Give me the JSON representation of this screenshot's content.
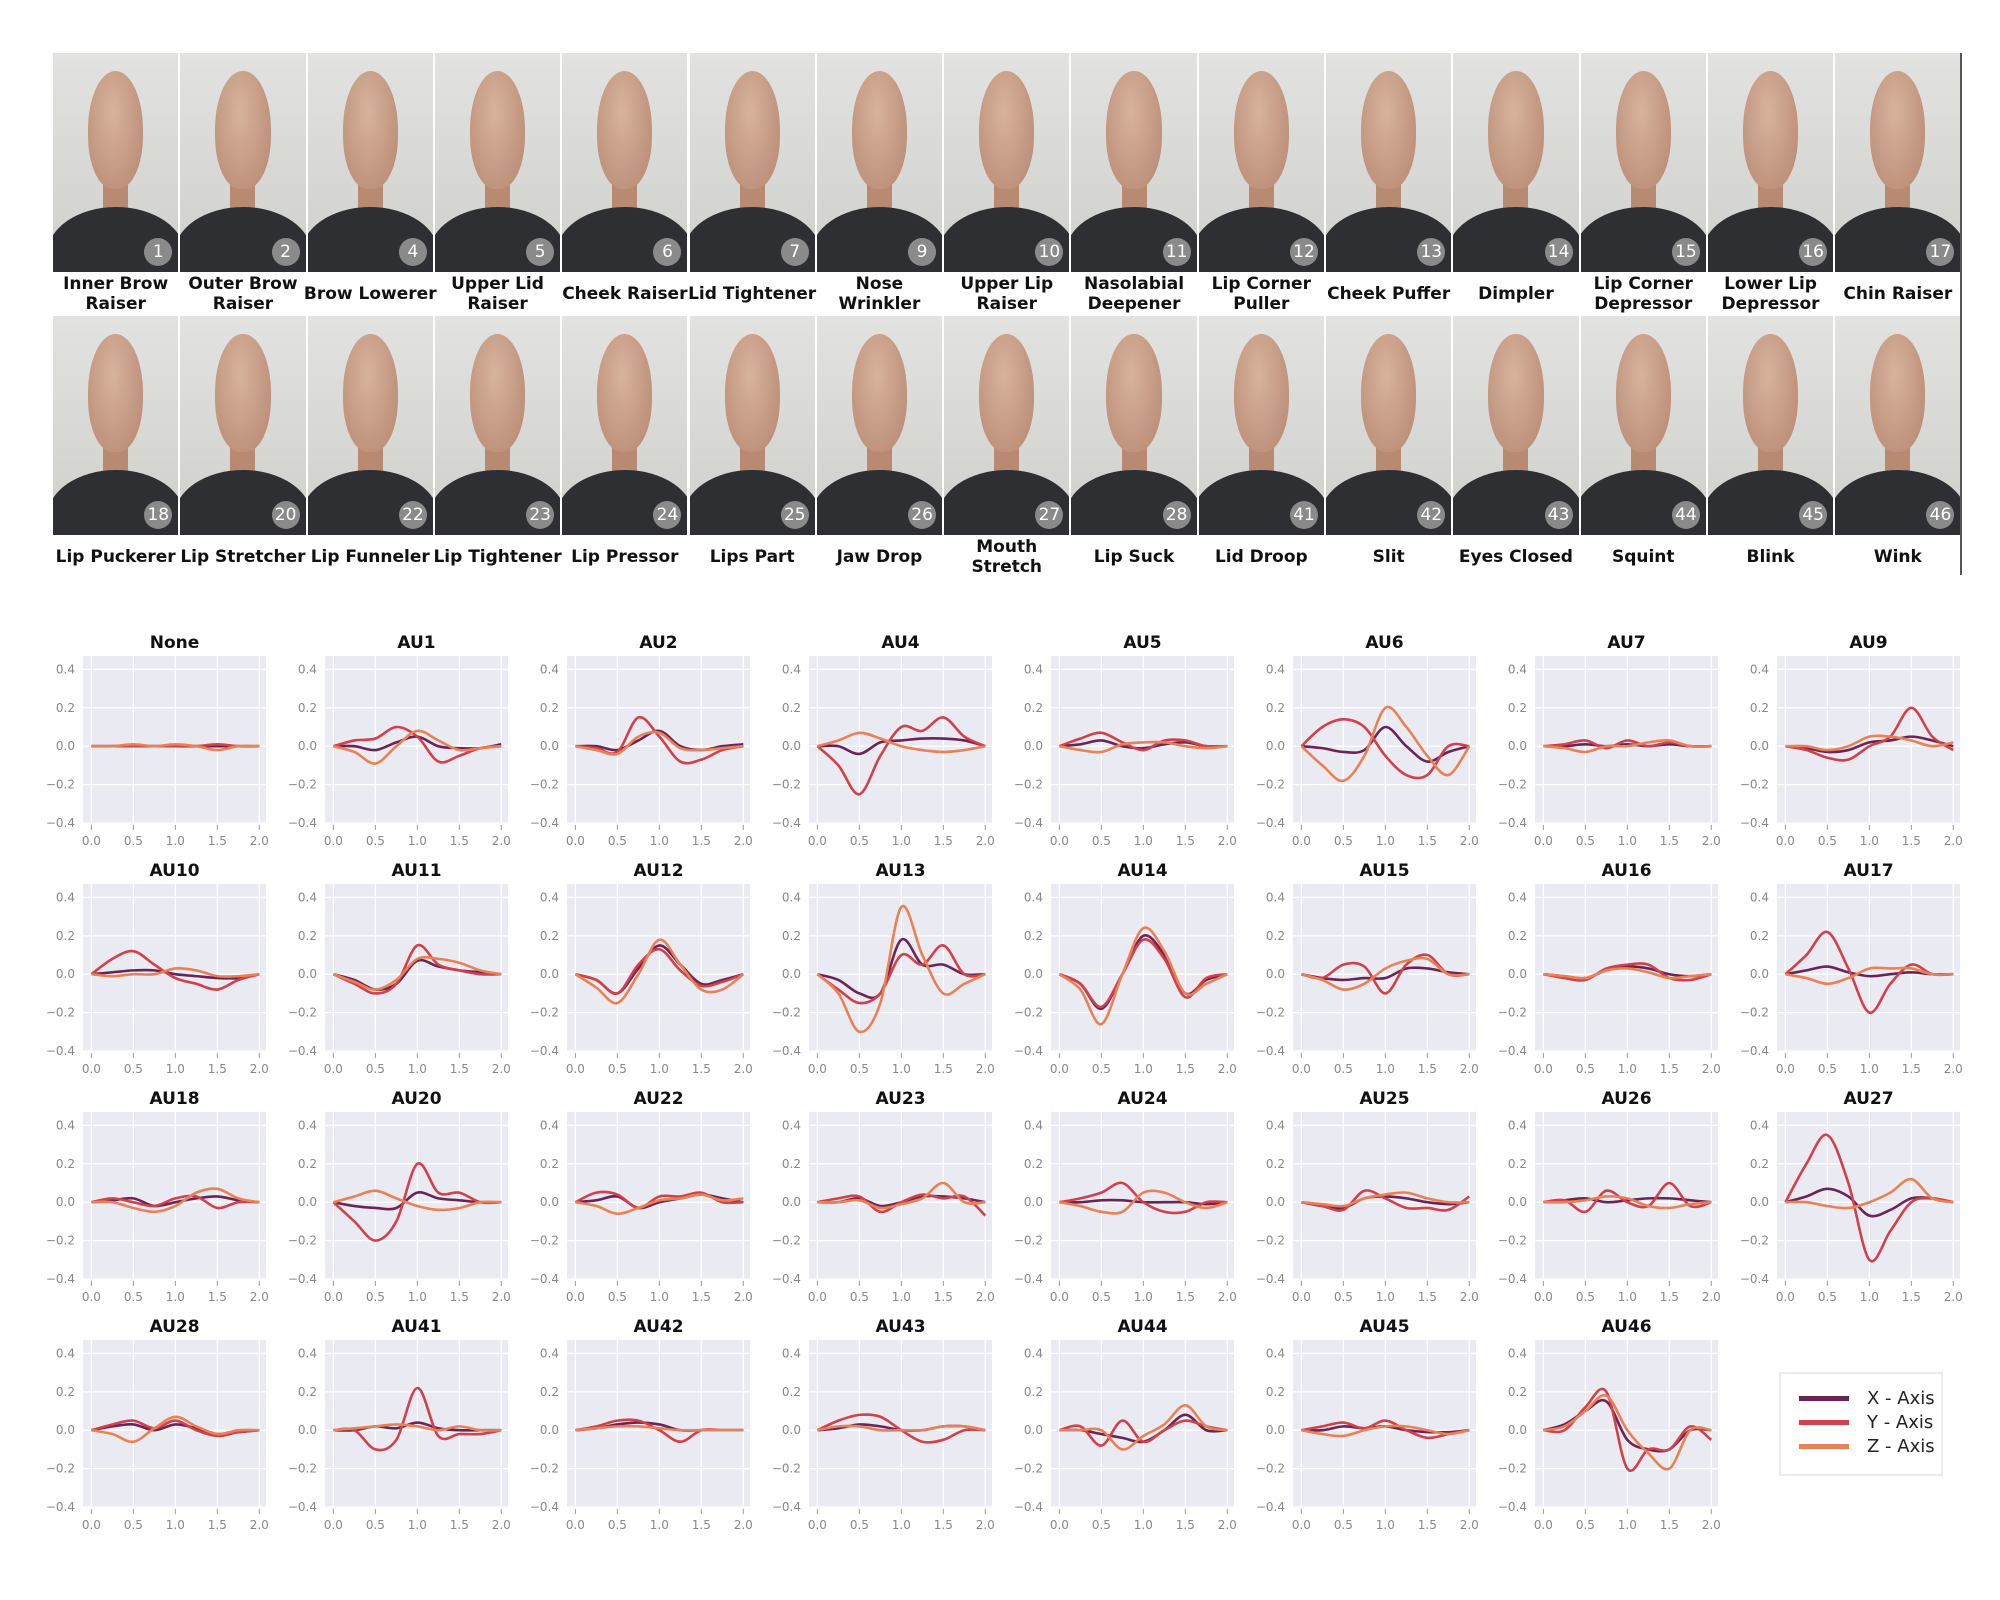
{
  "photos": [
    {
      "label": "Inner Brow Raiser",
      "au": "1"
    },
    {
      "label": "Outer Brow Raiser",
      "au": "2"
    },
    {
      "label": "Brow Lowerer",
      "au": "4"
    },
    {
      "label": "Upper Lid Raiser",
      "au": "5"
    },
    {
      "label": "Cheek Raiser",
      "au": "6"
    },
    {
      "label": "Lid Tightener",
      "au": "7"
    },
    {
      "label": "Nose Wrinkler",
      "au": "9"
    },
    {
      "label": "Upper Lip Raiser",
      "au": "10"
    },
    {
      "label": "Nasolabial Deepener",
      "au": "11"
    },
    {
      "label": "Lip Corner Puller",
      "au": "12"
    },
    {
      "label": "Cheek Puffer",
      "au": "13"
    },
    {
      "label": "Dimpler",
      "au": "14"
    },
    {
      "label": "Lip Corner Depressor",
      "au": "15"
    },
    {
      "label": "Lower Lip Depressor",
      "au": "16"
    },
    {
      "label": "Chin Raiser",
      "au": "17"
    },
    {
      "label": "Lip Puckerer",
      "au": "18"
    },
    {
      "label": "Lip Stretcher",
      "au": "20"
    },
    {
      "label": "Lip Funneler",
      "au": "22"
    },
    {
      "label": "Lip Tightener",
      "au": "23"
    },
    {
      "label": "Lip Pressor",
      "au": "24"
    },
    {
      "label": "Lips Part",
      "au": "25"
    },
    {
      "label": "Jaw Drop",
      "au": "26"
    },
    {
      "label": "Mouth Stretch",
      "au": "27"
    },
    {
      "label": "Lip Suck",
      "au": "28"
    },
    {
      "label": "Lid Droop",
      "au": "41"
    },
    {
      "label": "Slit",
      "au": "42"
    },
    {
      "label": "Eyes Closed",
      "au": "43"
    },
    {
      "label": "Squint",
      "au": "44"
    },
    {
      "label": "Blink",
      "au": "45"
    },
    {
      "label": "Wink",
      "au": "46"
    }
  ],
  "legend": [
    {
      "name": "X - Axis",
      "color": "#6b2456"
    },
    {
      "name": "Y - Axis",
      "color": "#d2404a"
    },
    {
      "name": "Z - Axis",
      "color": "#ea8155"
    }
  ],
  "chart_data": {
    "type": "line",
    "layout": "small multiples, 8 per row",
    "grid": true,
    "legend_position": "bottom-right",
    "xlim": [
      -0.1,
      2.08
    ],
    "ylim": [
      -0.4,
      0.47
    ],
    "xticks": [
      "0.0",
      "0.5",
      "1.0",
      "1.5",
      "2.0"
    ],
    "yticks": [
      "0.4",
      "0.2",
      "0.0",
      "−0.2",
      "−0.4"
    ],
    "x": [
      0,
      0.25,
      0.5,
      0.75,
      1.0,
      1.25,
      1.5,
      1.75,
      2.0
    ],
    "series_names": [
      "X - Axis",
      "Y - Axis",
      "Z - Axis"
    ],
    "panels": [
      {
        "title": "None",
        "X": [
          0,
          0,
          0,
          0,
          0,
          0,
          0,
          0,
          0
        ],
        "Y": [
          0,
          0,
          0,
          0,
          0,
          0,
          0.01,
          0,
          0
        ],
        "Z": [
          0,
          0,
          0.01,
          0,
          0.01,
          0,
          -0.02,
          0,
          0
        ]
      },
      {
        "title": "AU1",
        "X": [
          0,
          0,
          -0.02,
          0.02,
          0.05,
          0,
          -0.01,
          -0.01,
          0.01
        ],
        "Y": [
          0,
          0.03,
          0.04,
          0.1,
          0.05,
          -0.08,
          -0.05,
          -0.01,
          0
        ],
        "Z": [
          0,
          -0.03,
          -0.09,
          0,
          0.08,
          0.03,
          -0.02,
          -0.01,
          0
        ]
      },
      {
        "title": "AU2",
        "X": [
          0,
          0,
          -0.02,
          0.03,
          0.08,
          0,
          -0.02,
          0,
          0.01
        ],
        "Y": [
          0,
          -0.01,
          -0.03,
          0.15,
          0.05,
          -0.08,
          -0.07,
          -0.02,
          0
        ],
        "Z": [
          0,
          -0.02,
          -0.04,
          0.05,
          0.07,
          -0.01,
          -0.02,
          -0.01,
          0
        ]
      },
      {
        "title": "AU4",
        "X": [
          0,
          0,
          -0.04,
          0.02,
          0.03,
          0.04,
          0.04,
          0.03,
          0
        ],
        "Y": [
          0,
          -0.1,
          -0.25,
          -0.05,
          0.1,
          0.08,
          0.15,
          0.05,
          0
        ],
        "Z": [
          0,
          0.03,
          0.07,
          0.04,
          0,
          -0.02,
          -0.03,
          -0.02,
          0
        ]
      },
      {
        "title": "AU5",
        "X": [
          0,
          0.01,
          0.03,
          0,
          -0.01,
          0.01,
          0.02,
          0,
          0
        ],
        "Y": [
          0,
          0.04,
          0.07,
          0.02,
          -0.02,
          0.03,
          0.03,
          0,
          0
        ],
        "Z": [
          0,
          -0.02,
          -0.03,
          0.01,
          0.02,
          0.02,
          0,
          -0.01,
          0
        ]
      },
      {
        "title": "AU6",
        "X": [
          0,
          -0.01,
          -0.03,
          -0.02,
          0.1,
          0,
          -0.08,
          -0.03,
          0
        ],
        "Y": [
          0,
          0.1,
          0.14,
          0.1,
          -0.05,
          -0.15,
          -0.15,
          0,
          0
        ],
        "Z": [
          0,
          -0.1,
          -0.18,
          -0.05,
          0.2,
          0.1,
          -0.05,
          -0.15,
          0
        ]
      },
      {
        "title": "AU7",
        "X": [
          0,
          0,
          0.01,
          0,
          0.01,
          0,
          0.01,
          0,
          0
        ],
        "Y": [
          0,
          0.01,
          0.03,
          -0.01,
          0.03,
          0,
          0.02,
          0,
          0
        ],
        "Z": [
          0,
          -0.01,
          -0.03,
          0,
          0,
          0.02,
          0.03,
          0,
          0
        ]
      },
      {
        "title": "AU9",
        "X": [
          0,
          -0.01,
          -0.03,
          -0.02,
          0.02,
          0.03,
          0.05,
          0.03,
          0
        ],
        "Y": [
          0,
          -0.02,
          -0.06,
          -0.07,
          0,
          0.05,
          0.2,
          0.05,
          -0.02
        ],
        "Z": [
          0,
          0,
          -0.02,
          0,
          0.05,
          0.05,
          0.03,
          0,
          0.02
        ]
      },
      {
        "title": "AU10",
        "X": [
          0,
          0.01,
          0.02,
          0.02,
          0,
          -0.01,
          -0.02,
          -0.02,
          0
        ],
        "Y": [
          0,
          0.08,
          0.12,
          0.05,
          -0.02,
          -0.05,
          -0.08,
          -0.03,
          0
        ],
        "Z": [
          0,
          -0.01,
          0,
          0,
          0.03,
          0.02,
          -0.01,
          -0.01,
          0
        ]
      },
      {
        "title": "AU11",
        "X": [
          0,
          -0.03,
          -0.08,
          -0.05,
          0.07,
          0.04,
          0.02,
          0.01,
          0
        ],
        "Y": [
          0,
          -0.05,
          -0.1,
          -0.05,
          0.15,
          0.05,
          0.02,
          0,
          0
        ],
        "Z": [
          0,
          -0.04,
          -0.08,
          -0.03,
          0.08,
          0.08,
          0.06,
          0.02,
          0
        ]
      },
      {
        "title": "AU12",
        "X": [
          0,
          -0.03,
          -0.1,
          0.03,
          0.15,
          0.05,
          -0.05,
          -0.03,
          0
        ],
        "Y": [
          0,
          -0.03,
          -0.1,
          0.05,
          0.13,
          0.02,
          -0.06,
          -0.04,
          0
        ],
        "Z": [
          0,
          -0.07,
          -0.15,
          0,
          0.18,
          0.05,
          -0.08,
          -0.08,
          0
        ]
      },
      {
        "title": "AU13",
        "X": [
          0,
          -0.03,
          -0.1,
          -0.1,
          0.18,
          0.05,
          0.05,
          0,
          0
        ],
        "Y": [
          0,
          -0.08,
          -0.15,
          -0.1,
          0.1,
          0.05,
          0.15,
          0,
          0
        ],
        "Z": [
          0,
          -0.1,
          -0.3,
          -0.15,
          0.35,
          0.1,
          -0.1,
          -0.05,
          0
        ]
      },
      {
        "title": "AU14",
        "X": [
          0,
          -0.05,
          -0.18,
          0,
          0.2,
          0.1,
          -0.1,
          -0.03,
          0
        ],
        "Y": [
          0,
          -0.05,
          -0.17,
          0,
          0.18,
          0.08,
          -0.12,
          -0.02,
          0
        ],
        "Z": [
          0,
          -0.08,
          -0.26,
          0,
          0.24,
          0.12,
          -0.1,
          -0.05,
          0
        ]
      },
      {
        "title": "AU15",
        "X": [
          0,
          -0.02,
          -0.03,
          -0.02,
          -0.02,
          0.03,
          0.03,
          0.01,
          0
        ],
        "Y": [
          0,
          -0.02,
          0.05,
          0.04,
          -0.1,
          0.05,
          0.1,
          0,
          0
        ],
        "Z": [
          0,
          -0.03,
          -0.08,
          -0.05,
          0.03,
          0.07,
          0.08,
          0,
          0
        ]
      },
      {
        "title": "AU16",
        "X": [
          0,
          -0.01,
          -0.02,
          0.02,
          0.04,
          0.03,
          0,
          -0.01,
          0
        ],
        "Y": [
          0,
          -0.02,
          -0.03,
          0.03,
          0.05,
          0.05,
          -0.02,
          -0.03,
          0
        ],
        "Z": [
          0,
          -0.01,
          -0.02,
          0.02,
          0.03,
          0.01,
          -0.02,
          -0.01,
          0
        ]
      },
      {
        "title": "AU17",
        "X": [
          0,
          0.02,
          0.04,
          0.01,
          -0.01,
          0,
          0.01,
          0,
          0
        ],
        "Y": [
          0,
          0.1,
          0.22,
          0.03,
          -0.2,
          -0.05,
          0.05,
          0,
          0
        ],
        "Z": [
          0,
          -0.02,
          -0.05,
          -0.02,
          0.03,
          0.03,
          0.03,
          0,
          0
        ]
      },
      {
        "title": "AU18",
        "X": [
          0,
          0.01,
          0.02,
          -0.02,
          0,
          0.02,
          0.03,
          0.01,
          0
        ],
        "Y": [
          0,
          0.02,
          0,
          -0.02,
          0.02,
          0.03,
          -0.03,
          0,
          0
        ],
        "Z": [
          0,
          0,
          -0.03,
          -0.05,
          -0.02,
          0.05,
          0.07,
          0.02,
          0
        ]
      },
      {
        "title": "AU20",
        "X": [
          0,
          -0.02,
          -0.03,
          -0.03,
          0.05,
          0.02,
          0.01,
          0,
          0
        ],
        "Y": [
          0,
          -0.1,
          -0.2,
          -0.1,
          0.2,
          0.05,
          0.05,
          0,
          0
        ],
        "Z": [
          0,
          0.03,
          0.06,
          0.02,
          -0.02,
          -0.04,
          -0.03,
          0,
          0
        ]
      },
      {
        "title": "AU22",
        "X": [
          0,
          0.01,
          0.03,
          -0.03,
          0,
          0.02,
          0.04,
          0.02,
          0
        ],
        "Y": [
          0,
          0.05,
          0.04,
          -0.03,
          0.03,
          0.03,
          0.05,
          0,
          0
        ],
        "Z": [
          0,
          -0.02,
          -0.06,
          -0.03,
          0.01,
          0.02,
          0.04,
          0.01,
          0.02
        ]
      },
      {
        "title": "AU23",
        "X": [
          0,
          0,
          0.02,
          -0.02,
          0,
          0.03,
          0.03,
          0.02,
          0
        ],
        "Y": [
          0,
          0.02,
          0.03,
          -0.05,
          0,
          0.04,
          0.02,
          0.03,
          -0.07
        ],
        "Z": [
          0,
          0,
          0.01,
          -0.03,
          -0.01,
          0.02,
          0.1,
          0,
          0
        ]
      },
      {
        "title": "AU24",
        "X": [
          0,
          0,
          0.01,
          0.01,
          0,
          0,
          0,
          -0.01,
          0
        ],
        "Y": [
          0,
          0.02,
          0.05,
          0.1,
          0,
          -0.05,
          -0.05,
          0,
          0
        ],
        "Z": [
          0,
          -0.02,
          -0.05,
          -0.05,
          0.05,
          0.05,
          0,
          -0.03,
          0
        ]
      },
      {
        "title": "AU25",
        "X": [
          0,
          -0.02,
          -0.03,
          0.02,
          0.03,
          0.02,
          0,
          -0.01,
          0
        ],
        "Y": [
          0,
          -0.02,
          -0.04,
          0.06,
          0.02,
          -0.03,
          -0.03,
          -0.04,
          0.03
        ],
        "Z": [
          0,
          -0.01,
          -0.02,
          0.02,
          0.04,
          0.05,
          0.02,
          0,
          0
        ]
      },
      {
        "title": "AU26",
        "X": [
          0,
          0.01,
          0.02,
          0,
          0.01,
          0.02,
          0.02,
          0.01,
          0
        ],
        "Y": [
          0,
          0.01,
          -0.05,
          0.06,
          0,
          -0.02,
          0.1,
          -0.02,
          0
        ],
        "Z": [
          0,
          0,
          0.01,
          0.03,
          0.02,
          -0.02,
          -0.03,
          -0.01,
          0
        ]
      },
      {
        "title": "AU27",
        "X": [
          0,
          0.03,
          0.07,
          0.03,
          -0.07,
          -0.04,
          0.02,
          0.02,
          0
        ],
        "Y": [
          0,
          0.2,
          0.35,
          0.1,
          -0.3,
          -0.15,
          0,
          0.02,
          0
        ],
        "Z": [
          0,
          0,
          -0.02,
          -0.03,
          0,
          0.05,
          0.12,
          0.02,
          0
        ]
      },
      {
        "title": "AU28",
        "X": [
          0,
          0.02,
          0.03,
          0,
          0.03,
          0.01,
          -0.02,
          -0.01,
          0
        ],
        "Y": [
          0,
          0.03,
          0.05,
          0.01,
          0.05,
          0,
          -0.03,
          -0.01,
          0
        ],
        "Z": [
          0,
          -0.02,
          -0.06,
          0.01,
          0.07,
          0.02,
          -0.02,
          0,
          0
        ]
      },
      {
        "title": "AU41",
        "X": [
          0,
          0,
          0.02,
          0.01,
          0.04,
          0.01,
          0,
          0,
          0
        ],
        "Y": [
          0,
          0,
          -0.1,
          -0.05,
          0.22,
          -0.03,
          -0.02,
          -0.02,
          0
        ],
        "Z": [
          0,
          0.01,
          0.02,
          0.03,
          0.02,
          0,
          0.02,
          0,
          0
        ]
      },
      {
        "title": "AU42",
        "X": [
          0,
          0.01,
          0.03,
          0.04,
          0.03,
          0,
          0,
          0,
          0
        ],
        "Y": [
          0,
          0.02,
          0.05,
          0.05,
          0,
          -0.06,
          0,
          0,
          0
        ],
        "Z": [
          0,
          0.01,
          0.02,
          0.02,
          0.01,
          0,
          0,
          0,
          0
        ]
      },
      {
        "title": "AU43",
        "X": [
          0,
          0.01,
          0.03,
          0.02,
          0,
          0,
          0.02,
          0.02,
          0
        ],
        "Y": [
          0,
          0.05,
          0.08,
          0.07,
          0,
          -0.06,
          -0.05,
          0,
          0
        ],
        "Z": [
          0,
          0.02,
          0.02,
          0,
          0,
          0,
          0.02,
          0.02,
          0
        ]
      },
      {
        "title": "AU44",
        "X": [
          0,
          0,
          -0.02,
          -0.04,
          -0.06,
          0,
          0.08,
          0,
          0
        ],
        "Y": [
          0,
          0.02,
          -0.08,
          0.05,
          -0.06,
          0,
          0.05,
          0.02,
          0
        ],
        "Z": [
          0,
          0,
          0,
          -0.1,
          -0.03,
          0.03,
          0.13,
          0.02,
          0
        ]
      },
      {
        "title": "AU45",
        "X": [
          0,
          0,
          0.02,
          0.01,
          0.02,
          0,
          -0.01,
          -0.01,
          0
        ],
        "Y": [
          0,
          0.02,
          0.04,
          0.01,
          0.05,
          0,
          -0.04,
          -0.02,
          0
        ],
        "Z": [
          0,
          -0.02,
          -0.03,
          0,
          0.02,
          0.02,
          0,
          -0.02,
          0
        ]
      },
      {
        "title": "AU46",
        "X": [
          0,
          0.03,
          0.1,
          0.15,
          -0.05,
          -0.1,
          -0.1,
          0,
          0
        ],
        "Y": [
          0,
          0,
          0.12,
          0.2,
          -0.2,
          -0.1,
          -0.1,
          0.02,
          -0.05
        ],
        "Z": [
          0,
          0.02,
          0.1,
          0.18,
          0,
          -0.12,
          -0.2,
          0,
          0
        ]
      }
    ]
  }
}
